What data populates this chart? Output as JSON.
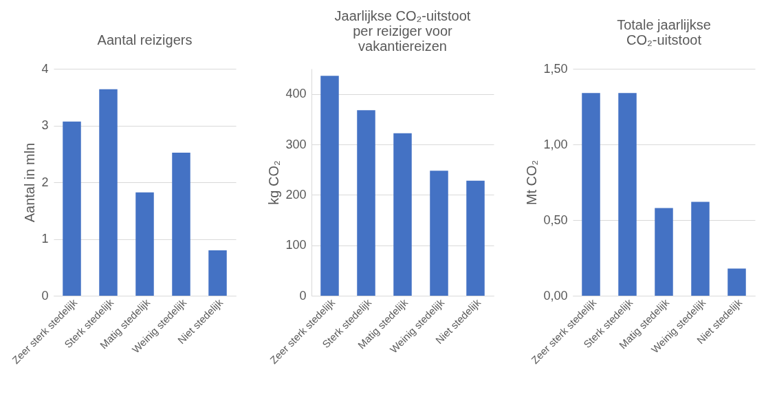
{
  "chart_data": [
    {
      "type": "bar",
      "title": "Aantal reizigers",
      "ylabel": "Aantal in mln",
      "categories": [
        "Zeer sterk stedelijk",
        "Sterk stedelijk",
        "Matig stedelijk",
        "Weinig stedelijk",
        "Niet stedelijk"
      ],
      "values": [
        3.07,
        3.64,
        1.82,
        2.52,
        0.8
      ],
      "color": "#4472c4",
      "ylim": [
        0,
        4
      ],
      "yticks": [
        0,
        1,
        2,
        3,
        4
      ],
      "grid": "y"
    },
    {
      "type": "bar",
      "title": "Jaarlijkse CO₂-uitstoot per reiziger voor vakantiereizen",
      "ylabel": "kg CO₂",
      "categories": [
        "Zeer sterk stedelijk",
        "Sterk stedelijk",
        "Matig stedelijk",
        "Weinig stedelijk",
        "Niet stedelijk"
      ],
      "values": [
        436,
        368,
        322,
        248,
        228
      ],
      "color": "#4472c4",
      "ylim": [
        0,
        450
      ],
      "yticks": [
        0,
        100,
        200,
        300,
        400
      ],
      "grid": "y"
    },
    {
      "type": "bar",
      "title": "Totale jaarlijkse CO₂-uitstoot",
      "ylabel": "Mt CO₂",
      "categories": [
        "Zeer sterk stedelijk",
        "Sterk stedelijk",
        "Matig stedelijk",
        "Weinig stedelijk",
        "Niet stedelijk"
      ],
      "values": [
        1.34,
        1.34,
        0.58,
        0.62,
        0.18
      ],
      "color": "#4472c4",
      "ylim": [
        0,
        1.5
      ],
      "yticks": [
        {
          "value": 0,
          "label": "0,00"
        },
        {
          "value": 0.5,
          "label": "0,50"
        },
        {
          "value": 1,
          "label": "1,00"
        },
        {
          "value": 1.5,
          "label": "1,50"
        }
      ],
      "grid": "y"
    }
  ]
}
